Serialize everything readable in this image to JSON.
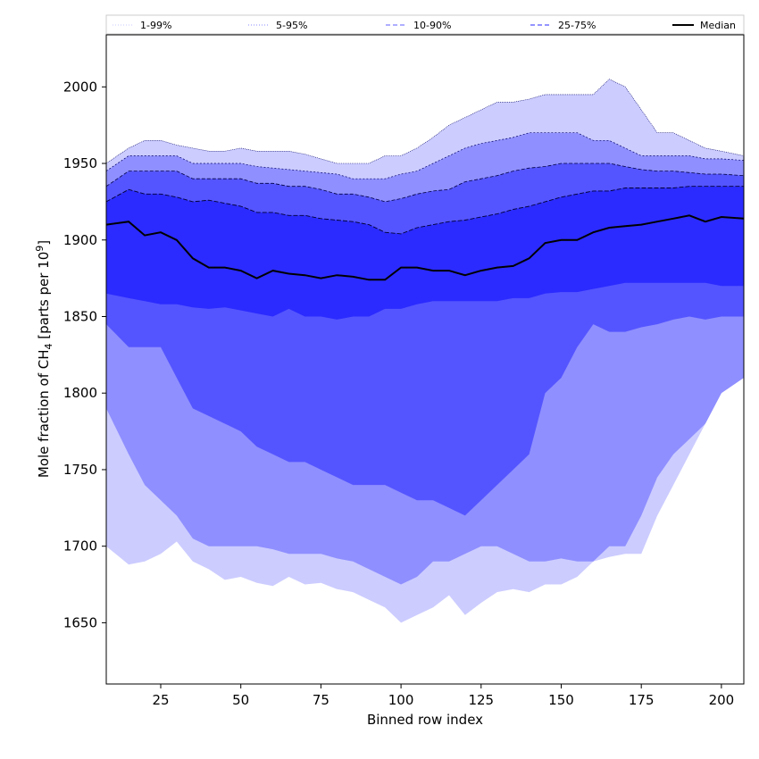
{
  "chart_data": {
    "type": "area",
    "xlabel": "Binned row index",
    "ylabel_main": "Mole fraction of CH",
    "ylabel_sub": "4",
    "ylabel_rest": " [parts per 10",
    "ylabel_sup": "9",
    "ylabel_end": "]",
    "xlim": [
      8,
      207
    ],
    "ylim": [
      1610,
      2034
    ],
    "xticks": [
      25,
      50,
      75,
      100,
      125,
      150,
      175,
      200
    ],
    "yticks": [
      1650,
      1700,
      1750,
      1800,
      1850,
      1900,
      1950,
      2000
    ],
    "legend_position": "top",
    "legend": [
      {
        "label": "1-99%",
        "style": "dotted",
        "color": "#c8c8ff"
      },
      {
        "label": "5-95%",
        "style": "dotted",
        "color": "#8a8aff"
      },
      {
        "label": "10-90%",
        "style": "dashed",
        "color": "#5c5cff"
      },
      {
        "label": "25-75%",
        "style": "dashed",
        "color": "#2a2aff"
      },
      {
        "label": "Median",
        "style": "solid",
        "color": "#000000"
      }
    ],
    "colors": {
      "band_1_99": "#ccccff",
      "band_5_95": "#8f8fff",
      "band_10_90": "#5555ff",
      "band_25_75": "#2b2bff",
      "median": "#000000"
    },
    "x": [
      8,
      15,
      20,
      25,
      30,
      35,
      40,
      45,
      50,
      55,
      60,
      65,
      70,
      75,
      80,
      85,
      90,
      95,
      100,
      105,
      110,
      115,
      120,
      125,
      130,
      135,
      140,
      145,
      150,
      155,
      160,
      165,
      170,
      175,
      180,
      185,
      190,
      195,
      200,
      207
    ],
    "p1": [
      1700,
      1688,
      1690,
      1695,
      1703,
      1690,
      1685,
      1678,
      1680,
      1676,
      1674,
      1680,
      1675,
      1676,
      1672,
      1670,
      1665,
      1660,
      1650,
      1655,
      1660,
      1668,
      1655,
      1663,
      1670,
      1672,
      1670,
      1675,
      1675,
      1680,
      1690,
      1693,
      1695,
      1695,
      1720,
      1740,
      1760,
      1780,
      1800,
      1815
    ],
    "p5": [
      1790,
      1760,
      1740,
      1730,
      1720,
      1705,
      1700,
      1700,
      1700,
      1700,
      1698,
      1695,
      1695,
      1695,
      1692,
      1690,
      1685,
      1680,
      1675,
      1680,
      1690,
      1690,
      1695,
      1700,
      1700,
      1695,
      1690,
      1690,
      1692,
      1690,
      1690,
      1700,
      1700,
      1720,
      1745,
      1760,
      1770,
      1780,
      1800,
      1810
    ],
    "p10": [
      1845,
      1830,
      1830,
      1830,
      1810,
      1790,
      1785,
      1780,
      1775,
      1765,
      1760,
      1755,
      1755,
      1750,
      1745,
      1740,
      1740,
      1740,
      1735,
      1730,
      1730,
      1725,
      1720,
      1730,
      1740,
      1750,
      1760,
      1800,
      1810,
      1830,
      1845,
      1840,
      1840,
      1843,
      1845,
      1848,
      1850,
      1848,
      1850,
      1850
    ],
    "p25": [
      1865,
      1862,
      1860,
      1858,
      1858,
      1856,
      1855,
      1856,
      1854,
      1852,
      1850,
      1855,
      1850,
      1850,
      1848,
      1850,
      1850,
      1855,
      1855,
      1858,
      1860,
      1860,
      1860,
      1860,
      1860,
      1862,
      1862,
      1865,
      1866,
      1866,
      1868,
      1870,
      1872,
      1872,
      1872,
      1872,
      1872,
      1872,
      1870,
      1870
    ],
    "median": [
      1910,
      1912,
      1903,
      1905,
      1900,
      1888,
      1882,
      1882,
      1880,
      1875,
      1880,
      1878,
      1877,
      1875,
      1877,
      1876,
      1874,
      1874,
      1882,
      1882,
      1880,
      1880,
      1877,
      1880,
      1882,
      1883,
      1888,
      1898,
      1900,
      1900,
      1905,
      1908,
      1909,
      1910,
      1912,
      1914,
      1916,
      1912,
      1915,
      1914
    ],
    "p75": [
      1925,
      1933,
      1930,
      1930,
      1928,
      1925,
      1926,
      1924,
      1922,
      1918,
      1918,
      1916,
      1916,
      1914,
      1913,
      1912,
      1910,
      1905,
      1904,
      1908,
      1910,
      1912,
      1913,
      1915,
      1917,
      1920,
      1922,
      1925,
      1928,
      1930,
      1932,
      1932,
      1934,
      1934,
      1934,
      1934,
      1935,
      1935,
      1935,
      1935
    ],
    "p90": [
      1935,
      1945,
      1945,
      1945,
      1945,
      1940,
      1940,
      1940,
      1940,
      1937,
      1937,
      1935,
      1935,
      1933,
      1930,
      1930,
      1928,
      1925,
      1927,
      1930,
      1932,
      1933,
      1938,
      1940,
      1942,
      1945,
      1947,
      1948,
      1950,
      1950,
      1950,
      1950,
      1948,
      1946,
      1945,
      1945,
      1944,
      1943,
      1943,
      1942
    ],
    "p95": [
      1945,
      1955,
      1955,
      1955,
      1955,
      1950,
      1950,
      1950,
      1950,
      1948,
      1947,
      1946,
      1945,
      1944,
      1943,
      1940,
      1940,
      1940,
      1943,
      1945,
      1950,
      1955,
      1960,
      1963,
      1965,
      1967,
      1970,
      1970,
      1970,
      1970,
      1965,
      1965,
      1960,
      1955,
      1955,
      1955,
      1955,
      1953,
      1953,
      1952
    ],
    "p99": [
      1950,
      1960,
      1965,
      1965,
      1962,
      1960,
      1958,
      1958,
      1960,
      1958,
      1958,
      1958,
      1956,
      1953,
      1950,
      1950,
      1950,
      1955,
      1955,
      1960,
      1967,
      1975,
      1980,
      1985,
      1990,
      1990,
      1992,
      1995,
      1995,
      1995,
      1995,
      2005,
      2000,
      1985,
      1970,
      1970,
      1965,
      1960,
      1958,
      1955
    ]
  }
}
